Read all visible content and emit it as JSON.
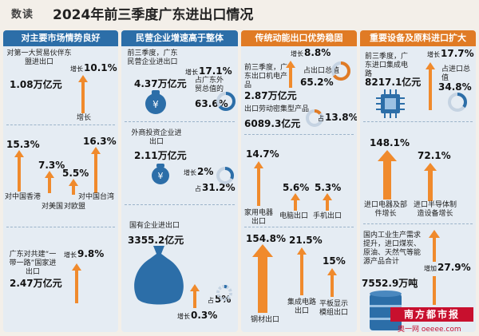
{
  "header": {
    "tag": "数读",
    "title": "2024年前三季度广东进出口情况"
  },
  "colors": {
    "blue": "#2c6ea8",
    "orange": "#e07b25",
    "arrow": "#f08a2c",
    "bg": "#e5ecf3",
    "red": "#c8102e"
  },
  "col1": {
    "title": "对主要市场情势良好",
    "partner": {
      "label": "对第一大贸易伙伴东盟进出口",
      "value": "1.08万亿元",
      "growth_label": "增长",
      "growth": "10.1%"
    },
    "markets": [
      {
        "name": "对中国香港",
        "growth": "15.3%"
      },
      {
        "name": "对美国",
        "growth": "7.3%"
      },
      {
        "name": "对欧盟",
        "growth": "5.5%"
      },
      {
        "name": "对中国台湾",
        "growth": "16.3%"
      }
    ],
    "belt": {
      "label": "广东对共建“一带一路”国家进出口",
      "value": "2.47万亿元",
      "growth_label": "增长",
      "growth": "9.8%"
    }
  },
  "col2": {
    "title": "民营企业增速高于整体",
    "private": {
      "label": "前三季度，广东民营企业进出口",
      "value": "4.37万亿元",
      "growth_label": "增长",
      "growth": "17.1%",
      "share_label": "占广东外贸总值的",
      "share": "63.6%"
    },
    "foreign": {
      "label": "外商投资企业进出口",
      "value": "2.11万亿元",
      "growth_label": "增长",
      "growth": "2%",
      "share_label": "占",
      "share": "31.2%"
    },
    "state": {
      "label": "国有企业进出口",
      "value": "3355.2亿元",
      "growth_label": "增长",
      "growth": "0.3%",
      "share_label": "占",
      "share": "5%"
    }
  },
  "col3": {
    "title": "传统动能出口优势稳固",
    "mech": {
      "label": "前三季度，广东出口机电产品",
      "value": "2.87万亿元",
      "growth_label": "增长",
      "growth": "8.8%",
      "share_label": "占出口总值",
      "share": "65.2%"
    },
    "labor": {
      "label": "出口劳动密集型产品",
      "value": "6089.3亿元",
      "share_label": "占",
      "share": "13.8%"
    },
    "items_top": [
      {
        "name": "家用电器出口",
        "growth": "14.7%"
      },
      {
        "name": "电脑出口",
        "growth": "5.6%"
      },
      {
        "name": "手机出口",
        "growth": "5.3%"
      }
    ],
    "items_bottom": [
      {
        "name": "钢材出口",
        "growth": "154.8%"
      },
      {
        "name": "集成电路出口",
        "growth": "21.5%"
      },
      {
        "name": "平板显示模组出口",
        "growth": "15%"
      }
    ]
  },
  "col4": {
    "title": "重要设备及原料进口扩大",
    "ic": {
      "label": "前三季度，广东进口集成电路",
      "value": "8217.1亿元",
      "growth_label": "增长",
      "growth": "17.7%",
      "share_label": "占进口总值",
      "share": "34.8%"
    },
    "equip": [
      {
        "name": "进口电器及部件增长",
        "growth": "148.1%"
      },
      {
        "name": "进口半导体制造设备增长",
        "growth": "72.1%"
      }
    ],
    "energy": {
      "label": "国内工业生产需求提升，进口煤炭、原油、天然气等能源产品合计",
      "value": "7552.9万吨",
      "growth_label": "增加",
      "growth": "27.9%"
    }
  },
  "footer": {
    "logo": "南方都市报",
    "site": "奥一网 oeeee.com"
  }
}
